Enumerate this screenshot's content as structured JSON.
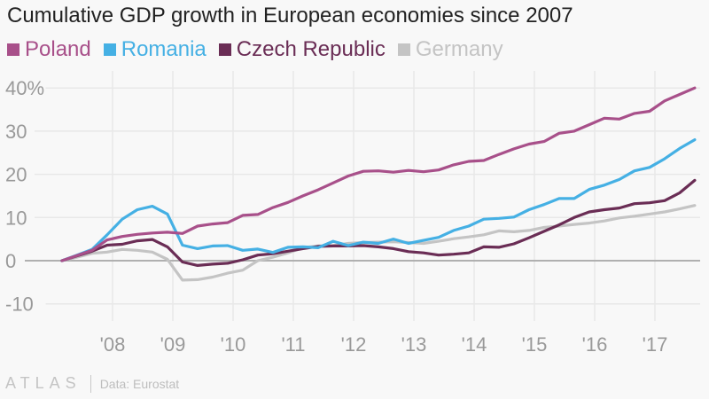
{
  "header": {
    "title": "Cumulative GDP growth in European economies since 2007"
  },
  "footer": {
    "logo": "ATLAS",
    "source": "Data: Eurostat"
  },
  "chart_data": {
    "type": "line",
    "title": "Cumulative GDP growth in European economies since 2007",
    "xlabel": "",
    "ylabel": "",
    "y_unit": "%",
    "ylim": [
      -13,
      42
    ],
    "yticks": [
      -10,
      0,
      10,
      20,
      30,
      40
    ],
    "ytick_labels": [
      "-10",
      "0",
      "10",
      "20",
      "30",
      "40%"
    ],
    "xlim": [
      2007.0,
      2017.65
    ],
    "xticks": [
      2008,
      2009,
      2010,
      2011,
      2012,
      2013,
      2014,
      2015,
      2016,
      2017
    ],
    "xtick_labels": [
      "'08",
      "'09",
      "'10",
      "'11",
      "'12",
      "'13",
      "'14",
      "'15",
      "'16",
      "'17"
    ],
    "grid": true,
    "legend_position": "top-left",
    "x_start": 2007.16,
    "x_step": 0.25,
    "series": [
      {
        "name": "Poland",
        "color": "#a8508a",
        "values": [
          0,
          1.2,
          2.4,
          4.8,
          5.6,
          6.1,
          6.4,
          6.6,
          6.3,
          8.0,
          8.5,
          8.8,
          10.5,
          10.7,
          12.3,
          13.5,
          15.0,
          16.4,
          18.0,
          19.6,
          20.7,
          20.8,
          20.5,
          20.9,
          20.6,
          21.0,
          22.2,
          23.0,
          23.2,
          24.6,
          25.9,
          27.0,
          27.6,
          29.5,
          30.0,
          31.5,
          33.0,
          32.8,
          34.1,
          34.6,
          37.0,
          38.5,
          40.0
        ]
      },
      {
        "name": "Romania",
        "color": "#45b0e4",
        "values": [
          0,
          1.3,
          2.6,
          6.0,
          9.6,
          11.8,
          12.6,
          10.8,
          3.6,
          2.8,
          3.4,
          3.5,
          2.4,
          2.7,
          1.9,
          3.1,
          3.2,
          3.0,
          4.5,
          3.5,
          4.3,
          4.0,
          5.0,
          4.0,
          4.7,
          5.4,
          7.0,
          8.0,
          9.6,
          9.8,
          10.1,
          11.8,
          13.0,
          14.4,
          14.4,
          16.5,
          17.5,
          18.8,
          20.8,
          21.6,
          23.6,
          26.0,
          28.0
        ]
      },
      {
        "name": "Czech Republic",
        "color": "#6a2d55",
        "values": [
          0,
          1.1,
          2.2,
          3.6,
          3.8,
          4.6,
          4.9,
          3.2,
          -0.3,
          -1.1,
          -0.8,
          -0.6,
          0.2,
          1.3,
          1.6,
          2.2,
          2.8,
          3.3,
          3.4,
          3.4,
          3.5,
          3.2,
          2.8,
          2.1,
          1.8,
          1.3,
          1.5,
          1.8,
          3.2,
          3.1,
          3.9,
          5.3,
          6.8,
          8.3,
          10.0,
          11.3,
          11.8,
          12.2,
          13.2,
          13.4,
          13.9,
          15.7,
          18.6
        ]
      },
      {
        "name": "Germany",
        "color": "#c4c4c4",
        "values": [
          0,
          0.8,
          1.7,
          2.0,
          2.6,
          2.4,
          2.0,
          0.3,
          -4.5,
          -4.4,
          -3.8,
          -2.9,
          -2.2,
          0.0,
          0.8,
          1.8,
          3.0,
          3.4,
          3.5,
          4.0,
          4.2,
          4.3,
          4.4,
          4.2,
          4.0,
          4.5,
          5.1,
          5.5,
          6.0,
          6.9,
          6.7,
          7.0,
          7.7,
          8.0,
          8.4,
          8.7,
          9.2,
          9.9,
          10.3,
          10.8,
          11.3,
          12.0,
          12.8
        ]
      }
    ]
  }
}
